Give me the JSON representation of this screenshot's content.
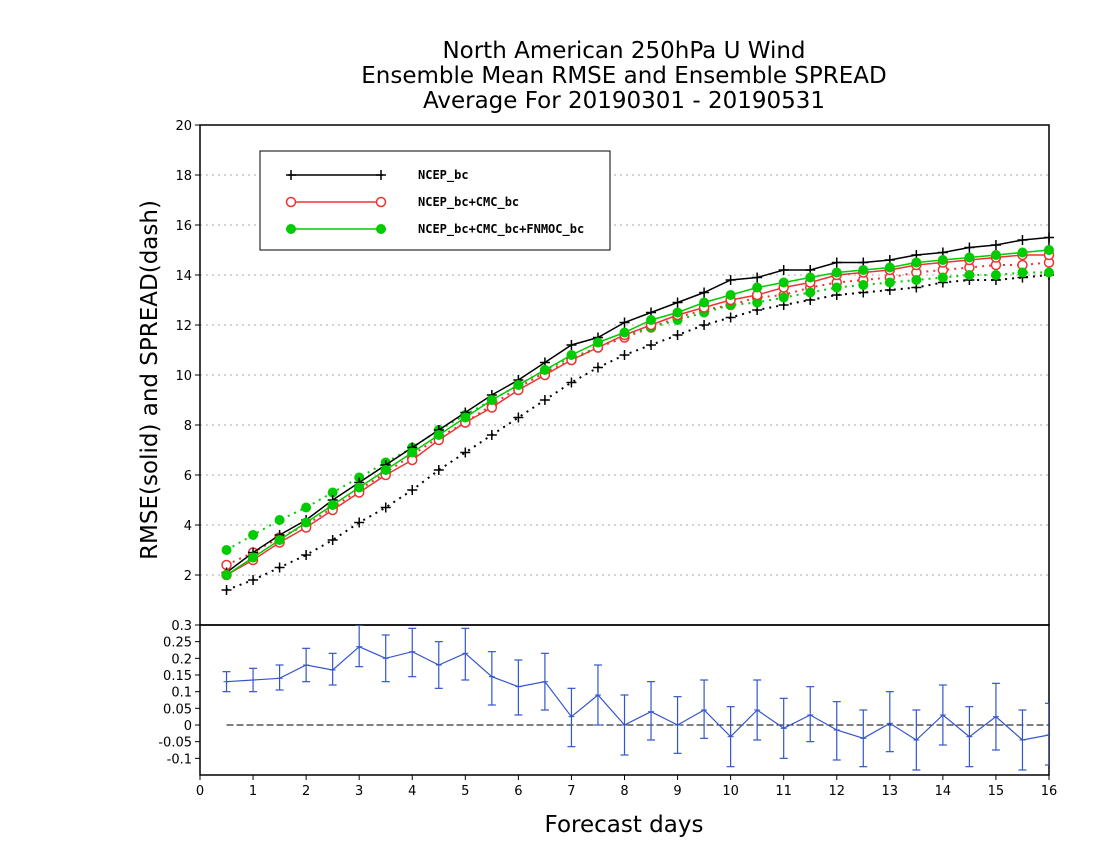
{
  "chart_data": [
    {
      "type": "line",
      "title": [
        "North American 250hPa U Wind",
        "Ensemble Mean RMSE and Ensemble SPREAD",
        "Average For 20190301 - 20190531"
      ],
      "xlabel": "Forecast days",
      "ylabel": "RMSE(solid)  and  SPREAD(dash)",
      "xlim": [
        0,
        16
      ],
      "ylim": [
        0,
        20
      ],
      "yticks": [
        2,
        4,
        6,
        8,
        10,
        12,
        14,
        16,
        18,
        20
      ],
      "grid": true,
      "legend_position": "top-left",
      "x": [
        0.5,
        1,
        1.5,
        2,
        2.5,
        3,
        3.5,
        4,
        4.5,
        5,
        5.5,
        6,
        6.5,
        7,
        7.5,
        8,
        8.5,
        9,
        9.5,
        10,
        10.5,
        11,
        11.5,
        12,
        12.5,
        13,
        13.5,
        14,
        14.5,
        15,
        15.5,
        16
      ],
      "series": [
        {
          "name": "NCEP_bc",
          "metric": "RMSE",
          "style": "solid",
          "marker": "plus",
          "color": "#000000",
          "values": [
            2.1,
            2.9,
            3.6,
            4.2,
            5.0,
            5.7,
            6.4,
            7.1,
            7.8,
            8.5,
            9.2,
            9.8,
            10.5,
            11.2,
            11.5,
            12.1,
            12.5,
            12.9,
            13.3,
            13.8,
            13.9,
            14.2,
            14.2,
            14.5,
            14.5,
            14.6,
            14.8,
            14.9,
            15.1,
            15.2,
            15.4,
            15.5
          ]
        },
        {
          "name": "NCEP_bc+CMC_bc",
          "metric": "RMSE",
          "style": "solid",
          "marker": "open-circle",
          "color": "#ee3333",
          "values": [
            2.0,
            2.6,
            3.3,
            3.9,
            4.6,
            5.3,
            6.0,
            6.6,
            7.4,
            8.1,
            8.7,
            9.4,
            10.0,
            10.6,
            11.1,
            11.6,
            12.0,
            12.4,
            12.7,
            13.0,
            13.2,
            13.5,
            13.7,
            14.0,
            14.1,
            14.2,
            14.4,
            14.5,
            14.6,
            14.7,
            14.8,
            14.8
          ]
        },
        {
          "name": "NCEP_bc+CMC_bc+FNMOC_bc",
          "metric": "RMSE",
          "style": "solid",
          "marker": "filled-circle",
          "color": "#00cc00",
          "values": [
            2.0,
            2.7,
            3.4,
            4.1,
            4.8,
            5.5,
            6.2,
            6.9,
            7.6,
            8.3,
            9.0,
            9.6,
            10.2,
            10.8,
            11.3,
            11.7,
            12.2,
            12.5,
            12.9,
            13.2,
            13.5,
            13.7,
            13.9,
            14.1,
            14.2,
            14.3,
            14.5,
            14.6,
            14.7,
            14.8,
            14.9,
            15.0
          ]
        },
        {
          "name": "NCEP_bc",
          "metric": "SPREAD",
          "style": "dotted",
          "marker": "plus",
          "color": "#000000",
          "values": [
            1.4,
            1.8,
            2.3,
            2.8,
            3.4,
            4.1,
            4.7,
            5.4,
            6.2,
            6.9,
            7.6,
            8.3,
            9.0,
            9.7,
            10.3,
            10.8,
            11.2,
            11.6,
            12.0,
            12.3,
            12.6,
            12.8,
            13.0,
            13.2,
            13.3,
            13.4,
            13.5,
            13.7,
            13.8,
            13.8,
            13.9,
            14.0
          ]
        },
        {
          "name": "NCEP_bc+CMC_bc",
          "metric": "SPREAD",
          "style": "dotted",
          "marker": "open-circle",
          "color": "#ee3333",
          "values": [
            2.4,
            2.9,
            3.5,
            4.0,
            4.7,
            5.4,
            6.1,
            6.8,
            7.5,
            8.1,
            8.8,
            9.5,
            10.1,
            10.6,
            11.1,
            11.5,
            11.9,
            12.3,
            12.6,
            12.8,
            13.1,
            13.2,
            13.5,
            13.7,
            13.8,
            13.9,
            14.1,
            14.2,
            14.3,
            14.4,
            14.4,
            14.5
          ]
        },
        {
          "name": "NCEP_bc+CMC_bc+FNMOC_bc",
          "metric": "SPREAD",
          "style": "dotted",
          "marker": "filled-circle",
          "color": "#00cc00",
          "values": [
            3.0,
            3.6,
            4.2,
            4.7,
            5.3,
            5.9,
            6.5,
            7.1,
            7.8,
            8.4,
            9.0,
            9.6,
            10.2,
            10.7,
            11.1,
            11.6,
            11.9,
            12.2,
            12.5,
            12.8,
            12.9,
            13.1,
            13.3,
            13.5,
            13.6,
            13.7,
            13.8,
            13.9,
            14.0,
            14.0,
            14.1,
            14.1
          ]
        }
      ]
    },
    {
      "type": "line",
      "xlabel": "Forecast days",
      "xlim": [
        0,
        16
      ],
      "xticks": [
        0,
        1,
        2,
        3,
        4,
        5,
        6,
        7,
        8,
        9,
        10,
        11,
        12,
        13,
        14,
        15,
        16
      ],
      "ylim": [
        -0.15,
        0.3
      ],
      "yticks": [
        "-0.1",
        "-0.05",
        "0",
        "0.05",
        "0.1",
        "0.15",
        "0.2",
        "0.25",
        "0.3"
      ],
      "reference_line": 0,
      "x": [
        0.5,
        1,
        1.5,
        2,
        2.5,
        3,
        3.5,
        4,
        4.5,
        5,
        5.5,
        6,
        6.5,
        7,
        7.5,
        8,
        8.5,
        9,
        9.5,
        10,
        10.5,
        11,
        11.5,
        12,
        12.5,
        13,
        13.5,
        14,
        14.5,
        15,
        15.5,
        16
      ],
      "series": [
        {
          "color": "#3355cc",
          "error_bars": true,
          "values": [
            0.13,
            0.135,
            0.14,
            0.18,
            0.165,
            0.235,
            0.2,
            0.22,
            0.18,
            0.215,
            0.145,
            0.115,
            0.13,
            0.025,
            0.09,
            0.0,
            0.04,
            0.0,
            0.045,
            -0.035,
            0.045,
            -0.01,
            0.03,
            -0.015,
            -0.04,
            0.005,
            -0.045,
            0.03,
            -0.035,
            0.025,
            -0.045,
            -0.03
          ],
          "lower": [
            0.1,
            0.1,
            0.105,
            0.13,
            0.12,
            0.175,
            0.13,
            0.145,
            0.11,
            0.135,
            0.06,
            0.03,
            0.045,
            -0.065,
            0.0,
            -0.09,
            -0.045,
            -0.085,
            -0.04,
            -0.125,
            -0.045,
            -0.1,
            -0.05,
            -0.105,
            -0.125,
            -0.08,
            -0.135,
            -0.06,
            -0.125,
            -0.075,
            -0.135,
            -0.12
          ],
          "upper": [
            0.16,
            0.17,
            0.18,
            0.23,
            0.215,
            0.3,
            0.27,
            0.29,
            0.25,
            0.29,
            0.22,
            0.195,
            0.215,
            0.11,
            0.18,
            0.09,
            0.13,
            0.085,
            0.135,
            0.055,
            0.135,
            0.08,
            0.115,
            0.07,
            0.045,
            0.1,
            0.045,
            0.12,
            0.055,
            0.125,
            0.045,
            0.065
          ]
        }
      ]
    }
  ]
}
